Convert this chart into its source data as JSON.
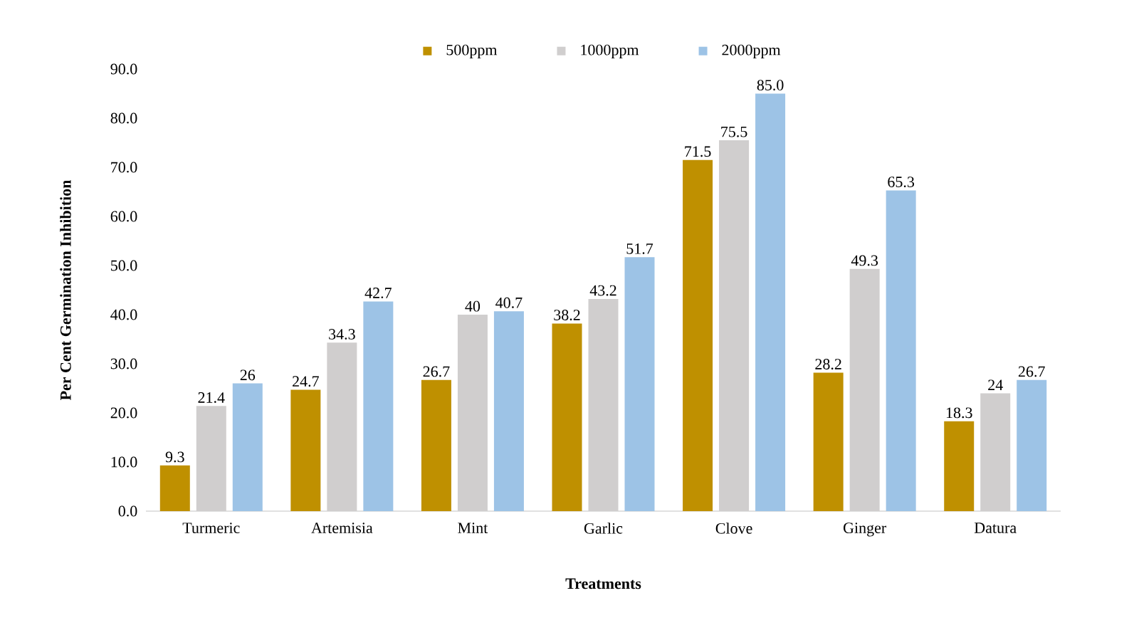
{
  "chart_data": {
    "type": "bar",
    "xlabel": "Treatments",
    "ylabel": "Per Cent Germination Inhibition",
    "categories": [
      "Turmeric",
      "Artemisia",
      "Mint",
      "Garlic",
      "Clove",
      "Ginger",
      "Datura"
    ],
    "series": [
      {
        "name": "500ppm",
        "color": "#bf9000",
        "values": [
          9.3,
          24.7,
          26.7,
          38.2,
          71.5,
          28.2,
          18.3
        ],
        "value_labels": [
          "9.3",
          "24.7",
          "26.7",
          "38.2",
          "71.5",
          "28.2",
          "18.3"
        ]
      },
      {
        "name": "1000ppm",
        "color": "#d0cece",
        "values": [
          21.4,
          34.3,
          40,
          43.2,
          75.5,
          49.3,
          24
        ],
        "value_labels": [
          "21.4",
          "34.3",
          "40",
          "43.2",
          "75.5",
          "49.3",
          "24"
        ]
      },
      {
        "name": "2000ppm",
        "color": "#9dc3e6",
        "values": [
          26,
          42.7,
          40.7,
          51.7,
          85.0,
          65.3,
          26.7
        ],
        "value_labels": [
          "26",
          "42.7",
          "40.7",
          "51.7",
          "85.0",
          "65.3",
          "26.7"
        ]
      }
    ],
    "ylim": [
      0,
      90
    ],
    "yticks": [
      {
        "value": 0,
        "label": "0.0"
      },
      {
        "value": 10,
        "label": "10.0"
      },
      {
        "value": 20,
        "label": "20.0"
      },
      {
        "value": 30,
        "label": "30.0"
      },
      {
        "value": 40,
        "label": "40.0"
      },
      {
        "value": 50,
        "label": "50.0"
      },
      {
        "value": 60,
        "label": "60.0"
      },
      {
        "value": 70,
        "label": "70.0"
      },
      {
        "value": 80,
        "label": "80.0"
      },
      {
        "value": 90,
        "label": "90.0"
      }
    ],
    "legend": "top"
  }
}
